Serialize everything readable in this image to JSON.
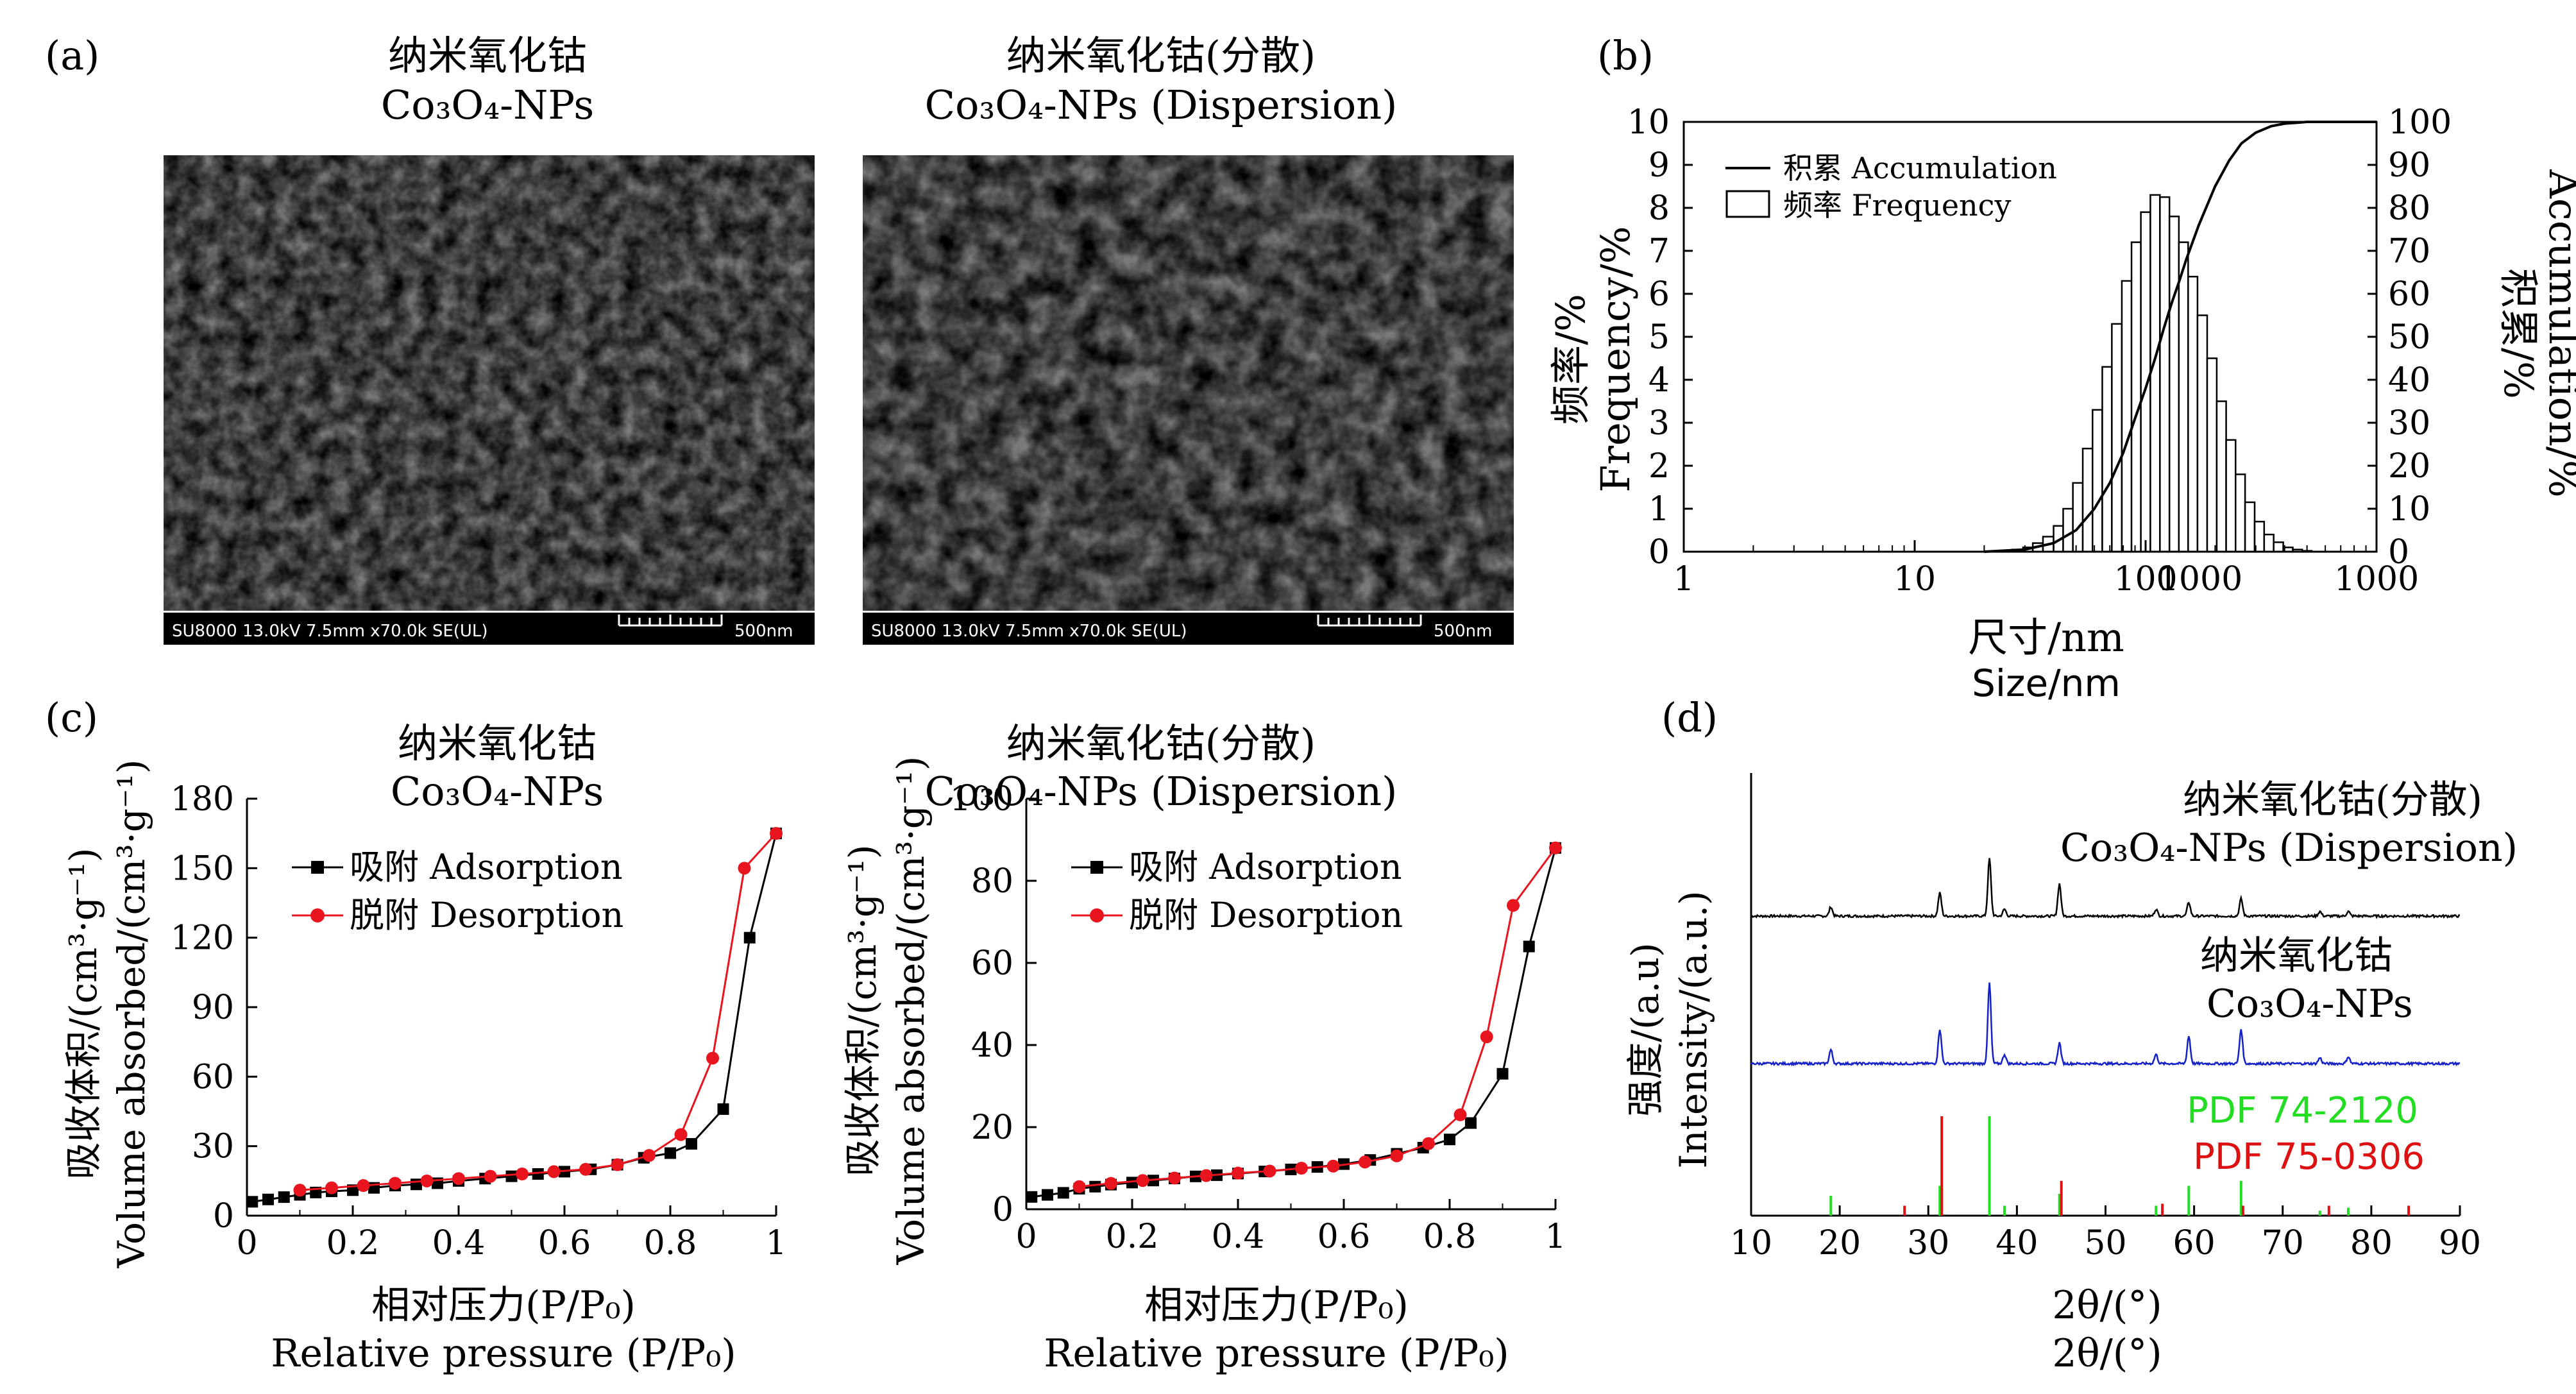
{
  "panels": {
    "a": {
      "letter": "(a)",
      "left": {
        "title_cn": "纳米氧化钴",
        "title_en": "Co₃O₄-NPs",
        "caption": "SU8000 13.0kV 7.5mm x70.0k SE(UL)",
        "scale": "500nm"
      },
      "right": {
        "title_cn": "纳米氧化钴(分散)",
        "title_en": "Co₃O₄-NPs (Dispersion)",
        "caption": "SU8000 13.0kV 7.5mm x70.0k SE(UL)",
        "scale": "500nm"
      }
    },
    "b": {
      "letter": "(b)",
      "ylabel_cn": "频率/%",
      "ylabel_en": "Frequency/%",
      "y2label_cn": "积累/%",
      "y2label_en": "Accumulation/%",
      "xlabel_cn": "尺寸/nm",
      "xlabel_en": "Size/nm",
      "legend": [
        {
          "cn": "积累",
          "en": "Accumulation",
          "kind": "line"
        },
        {
          "cn": "频率",
          "en": "Frequency",
          "kind": "bar"
        }
      ]
    },
    "c": {
      "letter": "(c)",
      "ylabel_cn": "吸收体积/(cm³·g⁻¹)",
      "ylabel_en": "Volume absorbed/(cm³·g⁻¹)",
      "xlabel_cn": "相对压力(P/P₀)",
      "xlabel_en": "Relative pressure (P/P₀)",
      "left": {
        "title_cn": "纳米氧化钴",
        "title_en": "Co₃O₄-NPs"
      },
      "right": {
        "title_cn": "纳米氧化钴(分散)",
        "title_en": "Co₃O₄-NPs (Dispersion)"
      },
      "legend": [
        {
          "cn": "吸附",
          "en": "Adsorption",
          "color": "#000000"
        },
        {
          "cn": "脱附",
          "en": "Desorption",
          "color": "#e8141e"
        }
      ]
    },
    "d": {
      "letter": "(d)",
      "ylabel_cn": "强度/(a.u)",
      "ylabel_en": "Intensity/(a.u.)",
      "xlabel_cn": "2θ/(°)",
      "xlabel_en": "2θ/(°)",
      "trace_top_cn": "纳米氧化钴(分散)",
      "trace_top_en": "Co₃O₄-NPs (Dispersion)",
      "trace_bottom_cn": "纳米氧化钴",
      "trace_bottom_en": "Co₃O₄-NPs",
      "pdf1": "PDF 74-2120",
      "pdf2": "PDF 75-0306"
    }
  },
  "colors": {
    "adsorption": "#000000",
    "desorption": "#e8141e",
    "xrd_top": "#000000",
    "xrd_bottom": "#1420c8",
    "pdf1": "#22dd22",
    "pdf2": "#dd1111"
  },
  "chart_data": [
    {
      "panel": "b",
      "type": "bar",
      "xscale": "log",
      "xlim": [
        1,
        1000
      ],
      "x_ticks": [
        "1",
        "10",
        "100",
        "1000",
        "1000"
      ],
      "ylim": [
        0,
        10
      ],
      "y_ticks": [
        0,
        1,
        2,
        3,
        4,
        5,
        6,
        7,
        8,
        9,
        10
      ],
      "y2lim": [
        0,
        100
      ],
      "y2_ticks": [
        0,
        10,
        20,
        30,
        40,
        50,
        60,
        70,
        80,
        90,
        100
      ],
      "frequency": {
        "x": [
          25,
          28,
          31,
          34,
          38,
          42,
          46,
          51,
          56,
          62,
          68,
          75,
          83,
          91,
          100,
          110,
          121,
          133,
          146,
          160,
          176,
          194,
          213,
          234,
          257,
          283,
          311,
          342,
          376,
          414,
          455,
          500
        ],
        "values": [
          0.02,
          0.05,
          0.1,
          0.2,
          0.35,
          0.6,
          1.0,
          1.6,
          2.4,
          3.3,
          4.3,
          5.3,
          6.3,
          7.2,
          7.9,
          8.3,
          8.25,
          7.8,
          7.2,
          6.4,
          5.5,
          4.5,
          3.5,
          2.6,
          1.8,
          1.15,
          0.7,
          0.4,
          0.22,
          0.1,
          0.05,
          0.02
        ]
      },
      "accumulation": {
        "x": [
          20,
          30,
          40,
          50,
          60,
          70,
          80,
          90,
          100,
          110,
          120,
          130,
          140,
          150,
          170,
          200,
          230,
          260,
          300,
          350,
          400,
          450,
          500,
          600,
          800,
          1000
        ],
        "values": [
          0,
          0.5,
          2,
          5,
          10,
          16,
          23,
          31,
          38,
          45,
          52,
          58,
          63,
          68,
          76,
          85,
          91,
          95,
          97.5,
          99,
          99.6,
          99.8,
          100,
          100,
          100,
          100
        ]
      }
    },
    {
      "panel": "c-left",
      "type": "line",
      "xlim": [
        0,
        1
      ],
      "x_ticks": [
        "0",
        "0.2",
        "0.4",
        "0.6",
        "0.8",
        "1"
      ],
      "ylim": [
        0,
        180
      ],
      "y_ticks": [
        0,
        30,
        60,
        90,
        120,
        150,
        180
      ],
      "series": [
        {
          "name": "吸附 Adsorption",
          "x": [
            0.01,
            0.04,
            0.07,
            0.1,
            0.13,
            0.16,
            0.2,
            0.24,
            0.28,
            0.32,
            0.36,
            0.4,
            0.45,
            0.5,
            0.55,
            0.6,
            0.65,
            0.7,
            0.75,
            0.8,
            0.84,
            0.9,
            0.95,
            1.0
          ],
          "values": [
            6,
            7,
            8,
            9,
            10,
            10.5,
            11,
            12,
            13,
            13.5,
            14,
            15,
            16,
            17,
            18,
            19,
            20,
            22,
            25,
            27,
            31,
            46,
            120,
            165
          ]
        },
        {
          "name": "脱附 Desorption",
          "x": [
            1.0,
            0.94,
            0.88,
            0.82,
            0.76,
            0.7,
            0.64,
            0.58,
            0.52,
            0.46,
            0.4,
            0.34,
            0.28,
            0.22,
            0.16,
            0.1
          ],
          "values": [
            165,
            150,
            68,
            35,
            26,
            22,
            20,
            19,
            18,
            17,
            16,
            15,
            14,
            13,
            12,
            11
          ]
        }
      ]
    },
    {
      "panel": "c-right",
      "type": "line",
      "xlim": [
        0,
        1
      ],
      "x_ticks": [
        "0",
        "0.2",
        "0.4",
        "0.6",
        "0.8",
        "1"
      ],
      "ylim": [
        0,
        100
      ],
      "y_ticks": [
        0,
        20,
        40,
        60,
        80,
        100
      ],
      "series": [
        {
          "name": "吸附 Adsorption",
          "x": [
            0.01,
            0.04,
            0.07,
            0.1,
            0.13,
            0.16,
            0.2,
            0.24,
            0.28,
            0.32,
            0.36,
            0.4,
            0.45,
            0.5,
            0.55,
            0.6,
            0.65,
            0.7,
            0.75,
            0.8,
            0.84,
            0.9,
            0.95,
            1.0
          ],
          "values": [
            3,
            3.5,
            4,
            5,
            5.5,
            6,
            6.5,
            7,
            7.5,
            8,
            8.3,
            8.7,
            9.2,
            9.7,
            10.3,
            11,
            12,
            13.5,
            15,
            17,
            21,
            33,
            64,
            88
          ]
        },
        {
          "name": "脱附 Desorption",
          "x": [
            1.0,
            0.92,
            0.87,
            0.82,
            0.76,
            0.7,
            0.64,
            0.58,
            0.52,
            0.46,
            0.4,
            0.34,
            0.28,
            0.22,
            0.16,
            0.1
          ],
          "values": [
            88,
            74,
            42,
            23,
            16,
            13,
            11.5,
            10.5,
            10,
            9.3,
            8.8,
            8.2,
            7.6,
            7,
            6.3,
            5.5
          ]
        }
      ]
    },
    {
      "panel": "d",
      "type": "line",
      "xlim": [
        10,
        90
      ],
      "x_ticks": [
        "10",
        "20",
        "30",
        "40",
        "50",
        "60",
        "70",
        "80",
        "90"
      ],
      "series": [
        {
          "name": "纳米氧化钴(分散) Co₃O₄-NPs (Dispersion)",
          "peaks": [
            [
              19.0,
              0.08
            ],
            [
              31.3,
              0.2
            ],
            [
              36.9,
              0.5
            ],
            [
              38.6,
              0.06
            ],
            [
              44.8,
              0.28
            ],
            [
              55.7,
              0.06
            ],
            [
              59.4,
              0.12
            ],
            [
              65.3,
              0.15
            ],
            [
              74.2,
              0.04
            ],
            [
              77.4,
              0.04
            ]
          ]
        },
        {
          "name": "纳米氧化钴 Co₃O₄-NPs",
          "peaks": [
            [
              19.0,
              0.12
            ],
            [
              31.3,
              0.3
            ],
            [
              36.9,
              0.7
            ],
            [
              38.6,
              0.08
            ],
            [
              44.8,
              0.18
            ],
            [
              55.7,
              0.08
            ],
            [
              59.4,
              0.24
            ],
            [
              65.3,
              0.3
            ],
            [
              74.2,
              0.05
            ],
            [
              77.4,
              0.06
            ]
          ]
        },
        {
          "name": "PDF 74-2120",
          "sticks": [
            [
              19.0,
              0.2
            ],
            [
              31.3,
              0.3
            ],
            [
              36.9,
              1.0
            ],
            [
              38.6,
              0.1
            ],
            [
              44.8,
              0.22
            ],
            [
              55.7,
              0.1
            ],
            [
              59.4,
              0.3
            ],
            [
              65.3,
              0.35
            ],
            [
              74.2,
              0.05
            ],
            [
              77.4,
              0.08
            ]
          ]
        },
        {
          "name": "PDF 75-0306",
          "sticks": [
            [
              27.1,
              0.1
            ],
            [
              31.3,
              1.0
            ],
            [
              44.8,
              0.35
            ],
            [
              56.2,
              0.12
            ],
            [
              65.3,
              0.1
            ],
            [
              75.0,
              0.1
            ],
            [
              84.0,
              0.1
            ]
          ]
        }
      ]
    }
  ]
}
